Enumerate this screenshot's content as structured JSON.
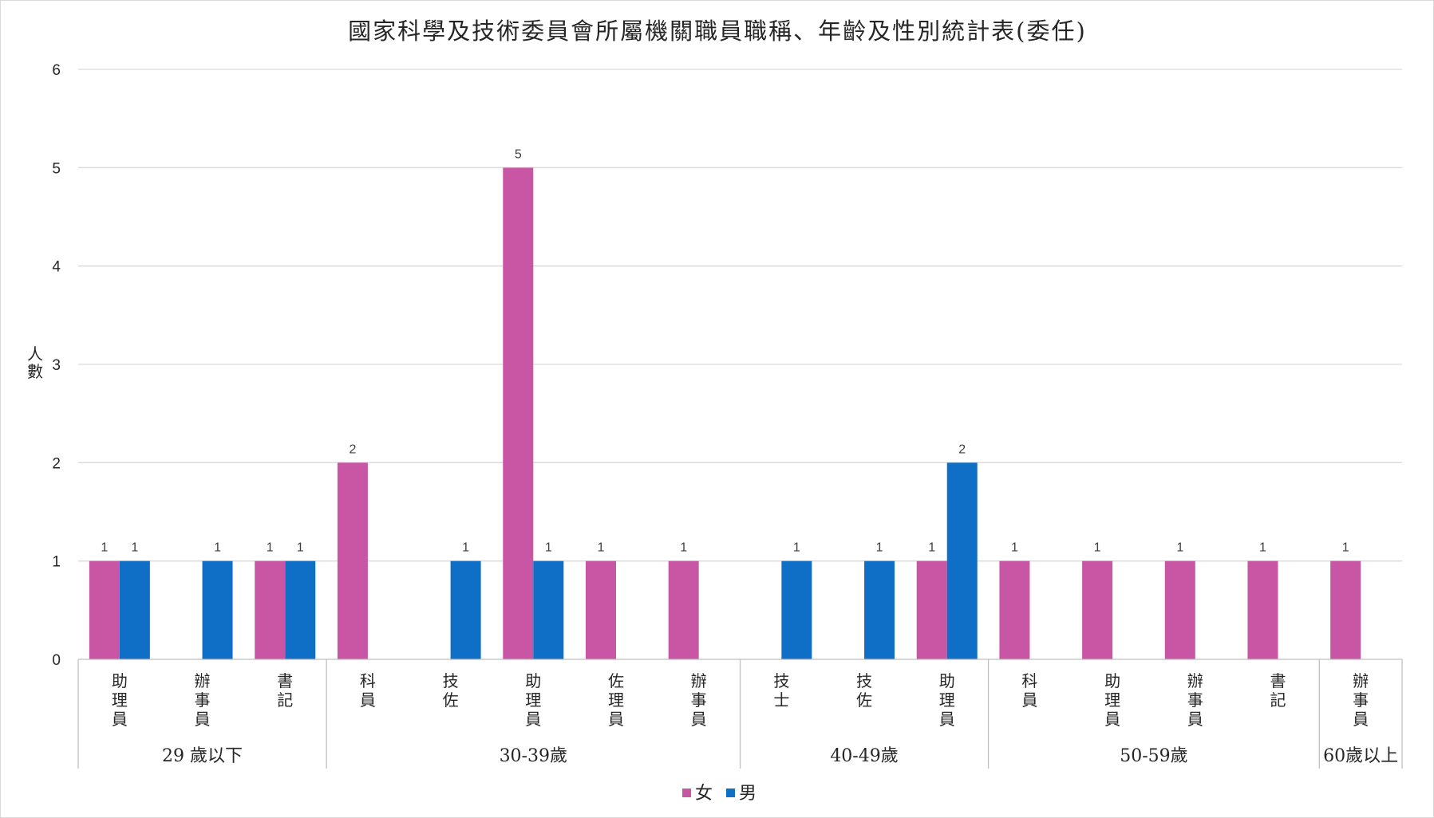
{
  "chart_data": {
    "type": "bar",
    "title": "國家科學及技術委員會所屬機關職員職稱、年齡及性別統計表(委任)",
    "ylabel": "人數",
    "xlabel": "",
    "ylim": [
      0,
      6
    ],
    "yticks": [
      "0",
      "1",
      "2",
      "3",
      "4",
      "5",
      "6"
    ],
    "grid": true,
    "legend_position": "bottom",
    "groups": [
      {
        "label": "29 歲以下",
        "count": 3
      },
      {
        "label": "30-39歲",
        "count": 5
      },
      {
        "label": "40-49歲",
        "count": 3
      },
      {
        "label": "50-59歲",
        "count": 4
      },
      {
        "label": "60歲以上",
        "count": 1
      }
    ],
    "categories": [
      "助理員",
      "辦事員",
      "書記",
      "科員",
      "技佐",
      "助理員",
      "佐理員",
      "辦事員",
      "技士",
      "技佐",
      "助理員",
      "科員",
      "助理員",
      "辦事員",
      "書記",
      "辦事員"
    ],
    "series": [
      {
        "name": "女",
        "color": "#c955a5",
        "values": [
          1,
          null,
          1,
          2,
          null,
          5,
          1,
          1,
          null,
          null,
          1,
          1,
          1,
          1,
          1,
          1
        ]
      },
      {
        "name": "男",
        "color": "#0f6fc6",
        "values": [
          1,
          1,
          1,
          null,
          1,
          1,
          null,
          null,
          1,
          1,
          2,
          null,
          null,
          null,
          null,
          null
        ]
      }
    ]
  }
}
